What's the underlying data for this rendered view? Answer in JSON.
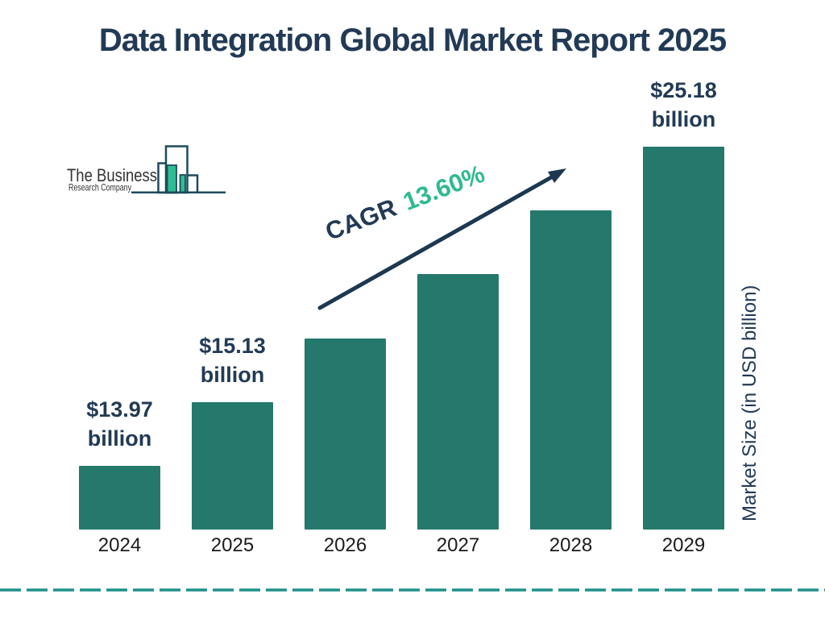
{
  "title": "Data Integration Global Market Report 2025",
  "logo": {
    "line1": "The Business",
    "line2": "Research Company"
  },
  "cagr": {
    "prefix": "CAGR",
    "value": "13.60%"
  },
  "y_axis_label": "Market Size (in USD billion)",
  "colors": {
    "navy_text": "#223A55",
    "bar_teal": "#24796C",
    "accent_green": "#2FBA8D",
    "logo_outline": "#1C4B5C",
    "logo_green": "#2EBD92",
    "divider_teal": "#1F908C",
    "year_label": "#1b1b1b"
  },
  "chart_data": {
    "type": "bar",
    "title": "Data Integration Global Market Report 2025",
    "categories": [
      "2024",
      "2025",
      "2026",
      "2027",
      "2028",
      "2029"
    ],
    "values": [
      13.97,
      15.13,
      17.19,
      19.52,
      22.18,
      25.18
    ],
    "unit": "USD billion",
    "xlabel": "",
    "ylabel": "Market Size (in USD billion)",
    "grid": false,
    "legend": false,
    "bar_color": "#24796C",
    "value_labels": [
      [
        "$13.97",
        "billion"
      ],
      [
        "$15.13",
        "billion"
      ],
      null,
      null,
      null,
      [
        "$25.18",
        "billion"
      ]
    ],
    "annotation": {
      "text": "CAGR 13.60%",
      "cagr_percent": 13.6
    }
  }
}
